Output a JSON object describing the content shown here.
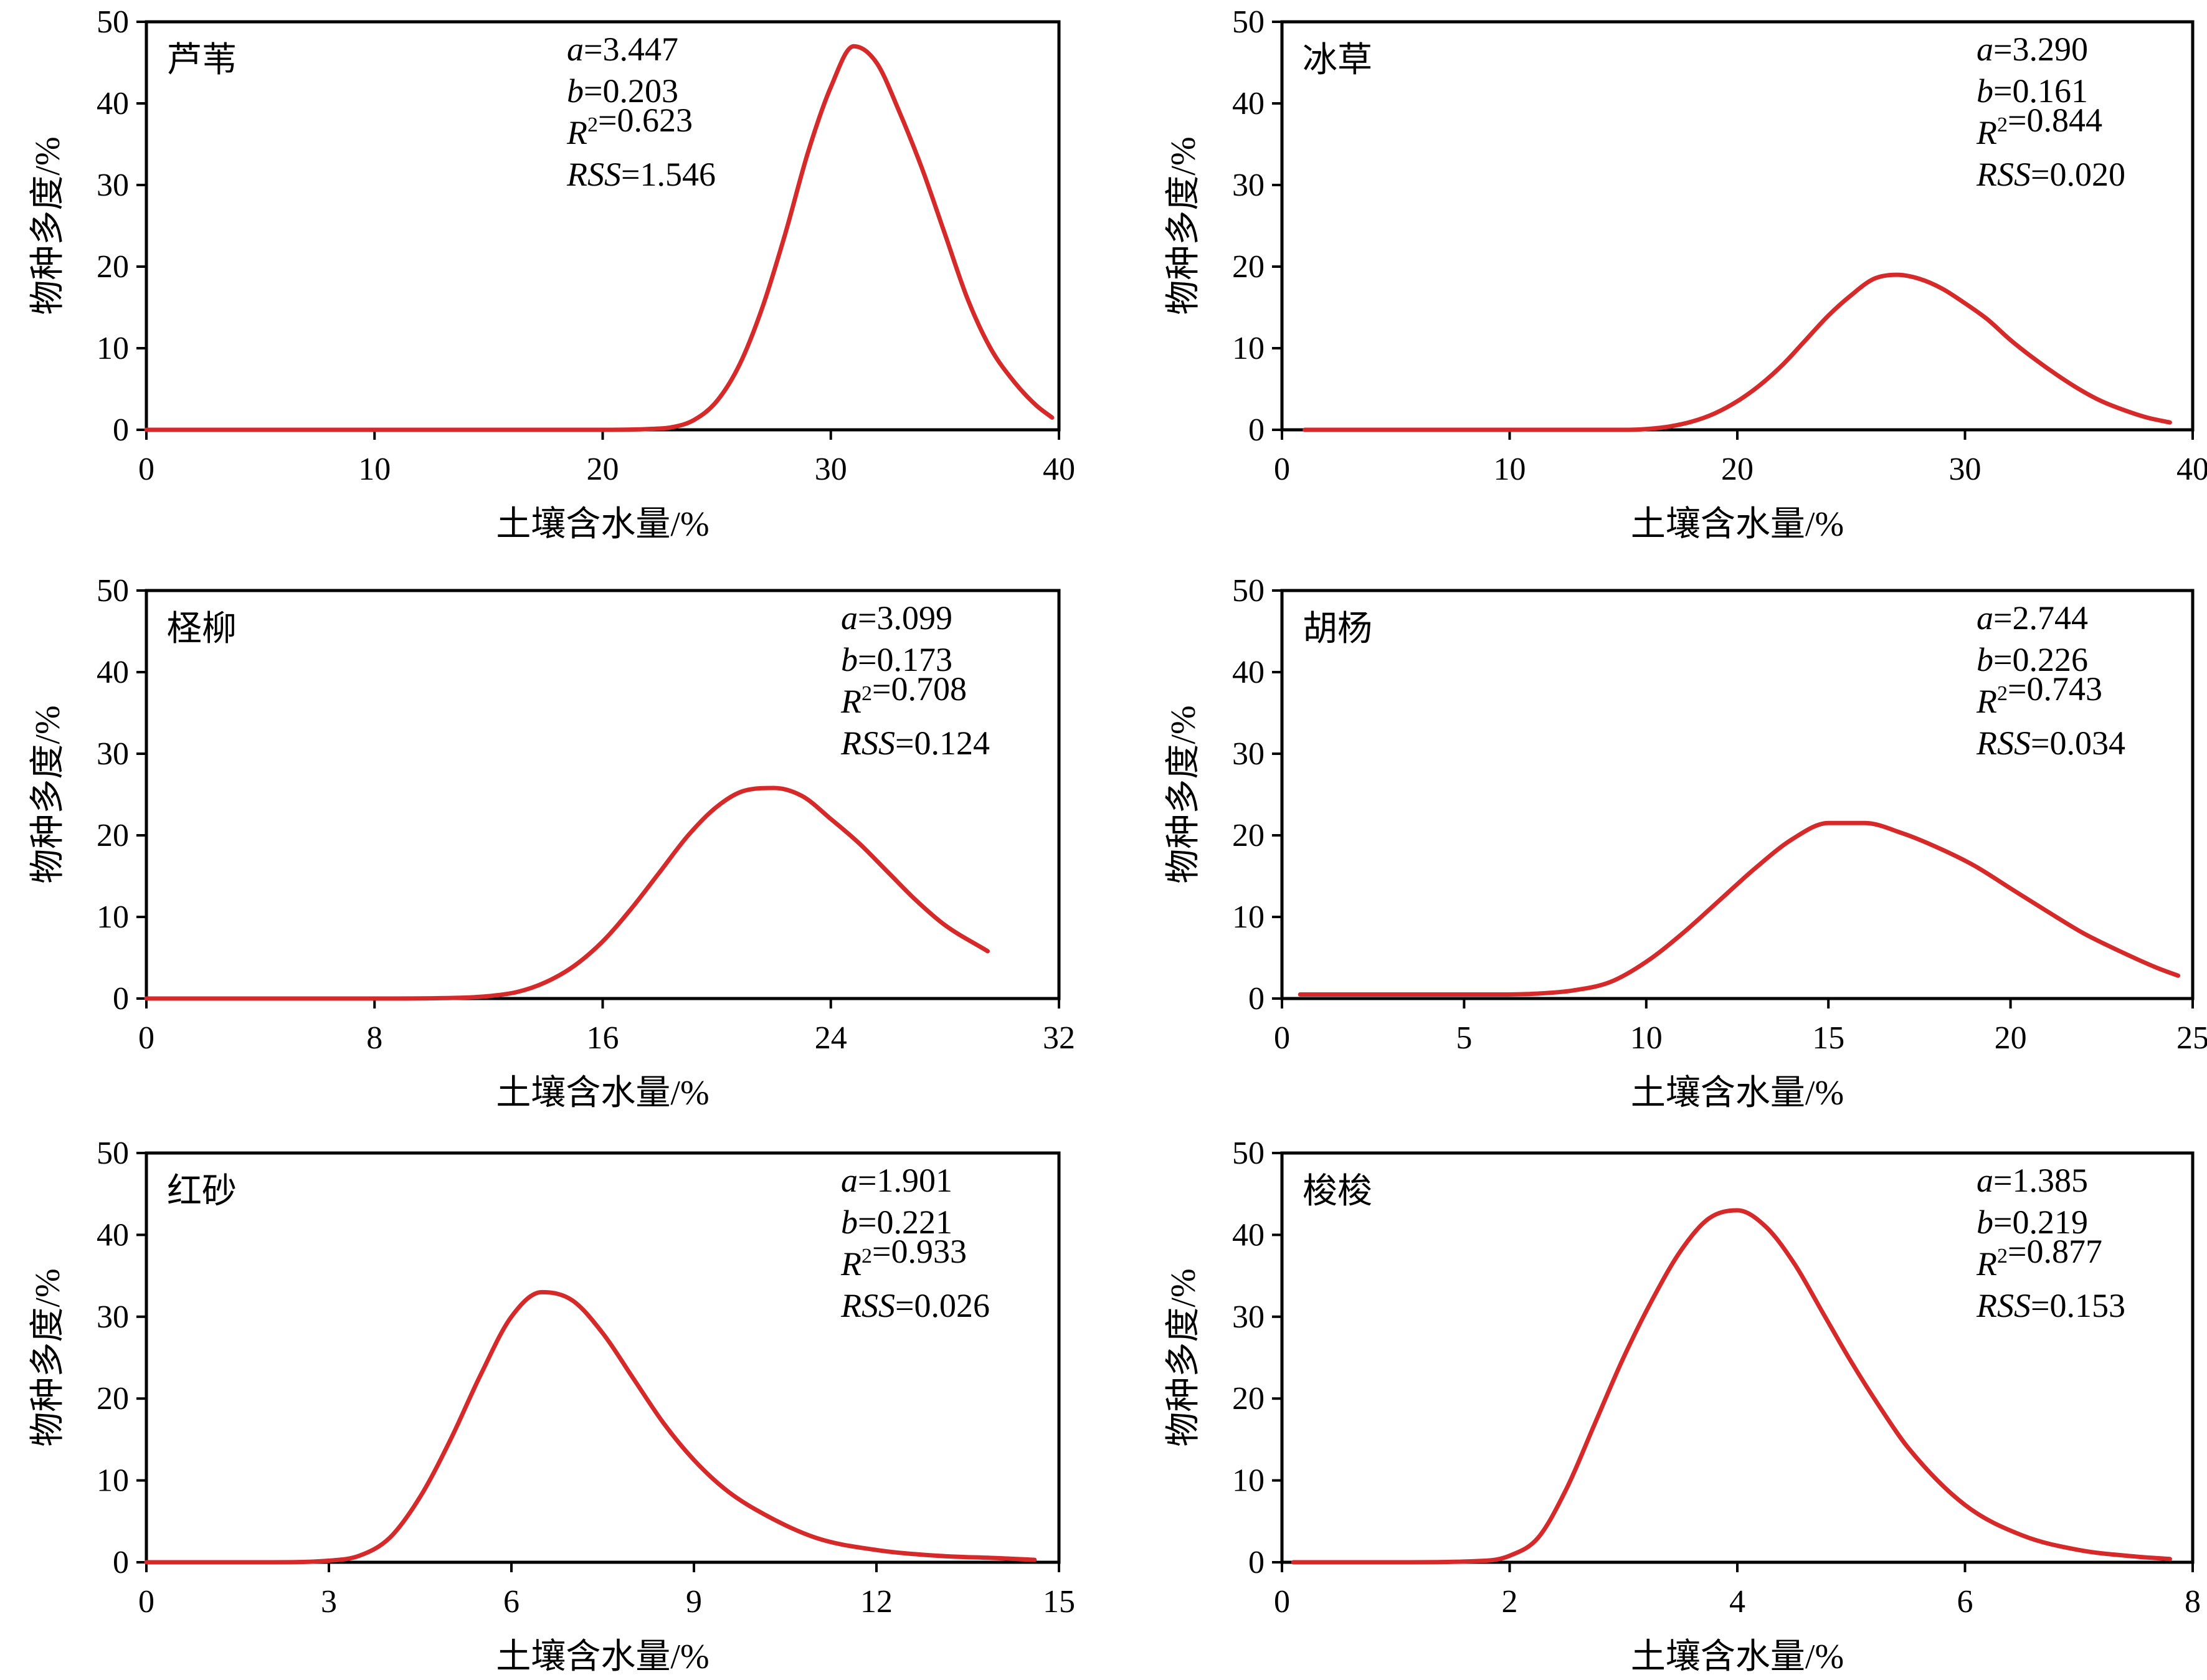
{
  "colors": {
    "curve": "#d62a2a",
    "axis": "#000000"
  },
  "chart_data": [
    {
      "type": "line",
      "species": "芦苇",
      "xlabel": "土壤含水量/%",
      "ylabel": "物种多度/%",
      "xlim": [
        0,
        40
      ],
      "ylim": [
        0,
        50
      ],
      "xticks": [
        0,
        10,
        20,
        30,
        40
      ],
      "yticks": [
        0,
        10,
        20,
        30,
        40,
        50
      ],
      "stats": {
        "a": "3.447",
        "b": "0.203",
        "R2": "0.623",
        "RSS": "1.546"
      },
      "series": [
        {
          "x": [
            0,
            5,
            10,
            15,
            20,
            22,
            23,
            24,
            25,
            26,
            27,
            28,
            29,
            30,
            31,
            32,
            33,
            34,
            35,
            36,
            37,
            38,
            39,
            39.7
          ],
          "y": [
            0,
            0,
            0,
            0,
            0,
            0.1,
            0.3,
            1.2,
            3.5,
            8,
            15,
            24,
            34,
            42,
            47,
            45,
            39,
            32,
            24,
            16,
            10,
            6,
            3,
            1.5
          ]
        }
      ]
    },
    {
      "type": "line",
      "species": "冰草",
      "xlabel": "土壤含水量/%",
      "ylabel": "物种多度/%",
      "xlim": [
        0,
        40
      ],
      "ylim": [
        0,
        50
      ],
      "xticks": [
        0,
        10,
        20,
        30,
        40
      ],
      "yticks": [
        0,
        10,
        20,
        30,
        40,
        50
      ],
      "stats": {
        "a": "3.290",
        "b": "0.161",
        "R2": "0.844",
        "RSS": "0.020"
      },
      "series": [
        {
          "x": [
            1,
            5,
            10,
            15,
            16,
            17,
            18,
            19,
            20,
            21,
            22,
            23,
            24,
            25,
            26,
            27,
            28,
            29,
            30,
            31,
            32,
            33,
            34,
            35,
            36,
            37,
            38,
            39
          ],
          "y": [
            0,
            0,
            0,
            0,
            0.1,
            0.4,
            1,
            2,
            3.5,
            5.5,
            8,
            11,
            14,
            16.5,
            18.5,
            19,
            18.5,
            17.3,
            15.5,
            13.5,
            11,
            8.8,
            6.8,
            5,
            3.5,
            2.4,
            1.5,
            0.9
          ]
        }
      ]
    },
    {
      "type": "line",
      "species": "柽柳",
      "xlabel": "土壤含水量/%",
      "ylabel": "物种多度/%",
      "xlim": [
        0,
        32
      ],
      "ylim": [
        0,
        50
      ],
      "xticks": [
        0,
        8,
        16,
        24,
        32
      ],
      "yticks": [
        0,
        10,
        20,
        30,
        40,
        50
      ],
      "stats": {
        "a": "3.099",
        "b": "0.173",
        "R2": "0.708",
        "RSS": "0.124"
      },
      "series": [
        {
          "x": [
            0,
            4,
            8,
            11,
            12,
            13,
            14,
            15,
            16,
            17,
            18,
            19,
            20,
            21,
            22,
            23,
            24,
            25,
            26,
            27,
            28,
            29.5
          ],
          "y": [
            0,
            0,
            0,
            0.1,
            0.3,
            0.8,
            2,
            4,
            7,
            11,
            15.5,
            20,
            23.5,
            25.5,
            25.8,
            24.8,
            22,
            19,
            15.5,
            12,
            9,
            5.8
          ]
        }
      ]
    },
    {
      "type": "line",
      "species": "胡杨",
      "xlabel": "土壤含水量/%",
      "ylabel": "物种多度/%",
      "xlim": [
        0,
        25
      ],
      "ylim": [
        0,
        50
      ],
      "xticks": [
        0,
        5,
        10,
        15,
        20,
        25
      ],
      "yticks": [
        0,
        10,
        20,
        30,
        40,
        50
      ],
      "stats": {
        "a": "2.744",
        "b": "0.226",
        "R2": "0.743",
        "RSS": "0.034"
      },
      "series": [
        {
          "x": [
            0.5,
            3,
            6,
            7,
            8,
            9,
            10,
            11,
            12,
            13,
            14,
            15,
            16,
            17,
            18,
            19,
            20,
            21,
            22,
            23,
            24,
            24.6
          ],
          "y": [
            0.5,
            0.5,
            0.5,
            0.6,
            1,
            2,
            4.5,
            8,
            12,
            16,
            19.5,
            21.5,
            21.5,
            20.3,
            18.5,
            16.3,
            13.5,
            10.7,
            8,
            5.8,
            3.8,
            2.8
          ]
        }
      ]
    },
    {
      "type": "line",
      "species": "红砂",
      "xlabel": "土壤含水量/%",
      "ylabel": "物种多度/%",
      "xlim": [
        0,
        15
      ],
      "ylim": [
        0,
        50
      ],
      "xticks": [
        0,
        3,
        6,
        9,
        12,
        15
      ],
      "yticks": [
        0,
        10,
        20,
        30,
        40,
        50
      ],
      "stats": {
        "a": "1.901",
        "b": "0.221",
        "R2": "0.933",
        "RSS": "0.026"
      },
      "series": [
        {
          "x": [
            0,
            2,
            3,
            3.5,
            4,
            4.5,
            5,
            5.5,
            6,
            6.5,
            7,
            7.5,
            8,
            8.5,
            9,
            9.5,
            10,
            11,
            12,
            13,
            14,
            14.6
          ],
          "y": [
            0,
            0,
            0.2,
            0.8,
            3,
            8,
            15,
            23,
            30,
            33,
            32,
            28,
            22.5,
            17,
            12.5,
            9,
            6.5,
            3,
            1.5,
            0.8,
            0.5,
            0.3
          ]
        }
      ]
    },
    {
      "type": "line",
      "species": "梭梭",
      "xlabel": "土壤含水量/%",
      "ylabel": "物种多度/%",
      "xlim": [
        0,
        8
      ],
      "ylim": [
        0,
        50
      ],
      "xticks": [
        0,
        2,
        4,
        6,
        8
      ],
      "yticks": [
        0,
        10,
        20,
        30,
        40,
        50
      ],
      "stats": {
        "a": "1.385",
        "b": "0.219",
        "R2": "0.877",
        "RSS": "0.153"
      },
      "series": [
        {
          "x": [
            0.1,
            1,
            1.8,
            2,
            2.25,
            2.5,
            2.75,
            3,
            3.25,
            3.5,
            3.75,
            4,
            4.25,
            4.5,
            4.75,
            5,
            5.25,
            5.5,
            6,
            6.5,
            7,
            7.5,
            7.8
          ],
          "y": [
            0,
            0,
            0.2,
            0.8,
            3,
            9,
            17,
            25,
            32,
            38,
            42,
            43,
            41,
            36.5,
            30.5,
            24.5,
            19,
            14,
            7,
            3.3,
            1.5,
            0.7,
            0.4
          ]
        }
      ]
    }
  ]
}
